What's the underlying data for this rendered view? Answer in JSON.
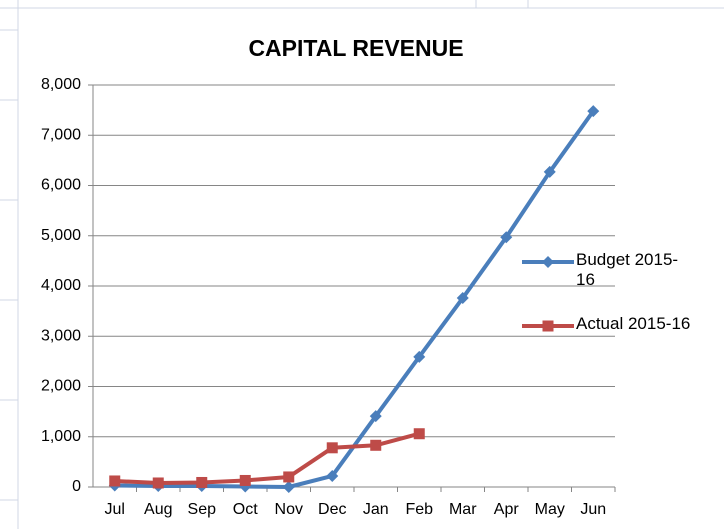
{
  "chart_data": {
    "type": "line",
    "title": "CAPITAL REVENUE",
    "categories": [
      "Jul",
      "Aug",
      "Sep",
      "Oct",
      "Nov",
      "Dec",
      "Jan",
      "Feb",
      "Mar",
      "Apr",
      "May",
      "Jun"
    ],
    "series": [
      {
        "name": "Budget 2015-16",
        "color": "#4a7ebb",
        "marker": "diamond",
        "values": [
          30,
          20,
          20,
          10,
          0,
          220,
          1410,
          2590,
          3760,
          4970,
          6270,
          7480
        ]
      },
      {
        "name": "Actual 2015-16",
        "color": "#be4b48",
        "marker": "square",
        "values": [
          120,
          80,
          90,
          130,
          200,
          780,
          830,
          1060,
          null,
          null,
          null,
          null
        ]
      }
    ],
    "ylim": [
      0,
      8000
    ],
    "yticks": [
      0,
      {
        "value": 1000,
        "label": "1,000"
      },
      {
        "value": 2000,
        "label": "2,000"
      },
      {
        "value": 3000,
        "label": "3,000"
      },
      {
        "value": 4000,
        "label": "4,000"
      },
      {
        "value": 5000,
        "label": "5,000"
      },
      {
        "value": 6000,
        "label": "6,000"
      },
      {
        "value": 7000,
        "label": "7,000"
      },
      {
        "value": 8000,
        "label": "8,000"
      }
    ],
    "grid": true,
    "legend": "right"
  }
}
